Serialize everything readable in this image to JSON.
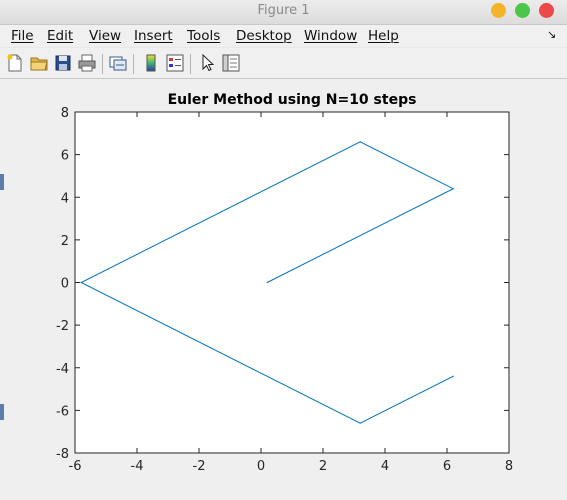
{
  "window": {
    "title": "Figure 1"
  },
  "menu": {
    "items": [
      "File",
      "Edit",
      "View",
      "Insert",
      "Tools",
      "Desktop",
      "Window",
      "Help"
    ]
  },
  "toolbar": {
    "icons": [
      "new-figure-icon",
      "open-file-icon",
      "save-icon",
      "print-icon",
      "link-plot-icon",
      "insert-colorbar-icon",
      "insert-legend-icon",
      "edit-plot-icon",
      "property-inspector-icon"
    ]
  },
  "chart_data": {
    "type": "line",
    "title": "Euler Method using N=10 steps",
    "xlabel": "",
    "ylabel": "",
    "xlim": [
      -6,
      8
    ],
    "ylim": [
      -8,
      8
    ],
    "xticks": [
      -6,
      -4,
      -2,
      0,
      2,
      4,
      6,
      8
    ],
    "yticks": [
      -8,
      -6,
      -4,
      -2,
      0,
      2,
      4,
      6,
      8
    ],
    "grid": false,
    "color": "#0072bd",
    "series": [
      {
        "x": [
          0.2,
          6.2,
          3.2,
          -5.8,
          3.2,
          6.2
        ],
        "y": [
          0.0,
          4.4,
          6.6,
          0.0,
          -6.6,
          -4.4
        ]
      }
    ]
  }
}
